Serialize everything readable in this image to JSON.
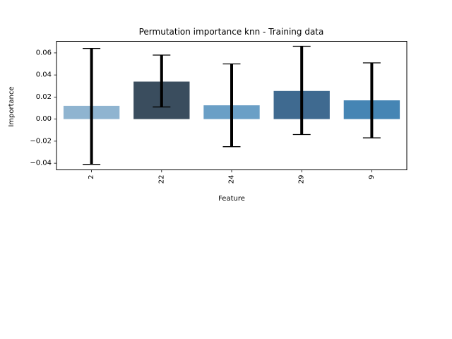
{
  "chart_data": {
    "type": "bar",
    "title": "Permutation importance knn  - Training data",
    "xlabel": "Feature",
    "ylabel": "Importance",
    "categories": [
      "2",
      "22",
      "24",
      "29",
      "9"
    ],
    "values": [
      0.012,
      0.034,
      0.0125,
      0.0255,
      0.017
    ],
    "error_low": [
      -0.041,
      0.011,
      -0.025,
      -0.014,
      -0.017
    ],
    "error_high": [
      0.064,
      0.058,
      0.05,
      0.066,
      0.051
    ],
    "bar_colors": [
      "#8fb4d0",
      "#3a4d5e",
      "#6a9fc6",
      "#3f6a90",
      "#4585b4"
    ],
    "ylim": [
      -0.046,
      0.0705
    ],
    "yticks": [
      -0.04,
      -0.02,
      0.0,
      0.02,
      0.04,
      0.06
    ],
    "ytick_labels": [
      "−0.04",
      "−0.02",
      "0.00",
      "0.02",
      "0.04",
      "0.06"
    ],
    "grid": false,
    "legend": "none"
  }
}
